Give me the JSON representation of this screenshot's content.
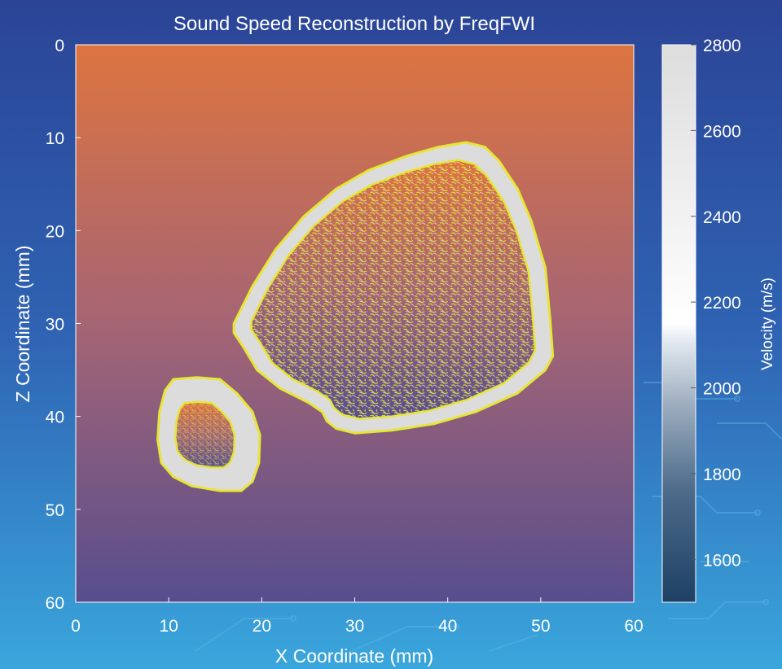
{
  "chart_data": {
    "type": "heatmap",
    "title": "Sound Speed Reconstruction by FreqFWI",
    "xlabel": "X Coordinate (mm)",
    "ylabel": "Z Coordinate (mm)",
    "xlim": [
      0,
      60
    ],
    "ylim": [
      0,
      60
    ],
    "y_inverted": true,
    "xticks": [
      0,
      10,
      20,
      30,
      40,
      50,
      60
    ],
    "yticks": [
      0,
      10,
      20,
      30,
      40,
      50,
      60
    ],
    "colorbar": {
      "label": "Velocity (m/s)",
      "range": [
        1500,
        2800
      ],
      "ticks": [
        1600,
        1800,
        2000,
        2200,
        2400,
        2600,
        2800
      ]
    },
    "background_gradient": {
      "top_color": "#dd7440",
      "bottom_color": "#574e8e"
    },
    "regions": [
      {
        "name": "large bone",
        "shell_color": "#dcdcdc",
        "interior": "trabecular",
        "outline": [
          [
            17,
            30
          ],
          [
            19,
            26
          ],
          [
            21.5,
            22
          ],
          [
            24.5,
            18.5
          ],
          [
            28,
            15.5
          ],
          [
            31.5,
            13.5
          ],
          [
            35.5,
            12
          ],
          [
            39,
            11
          ],
          [
            42,
            10.5
          ],
          [
            44,
            11
          ],
          [
            45.5,
            12.5
          ],
          [
            47.5,
            15.5
          ],
          [
            49,
            19
          ],
          [
            50.5,
            24
          ],
          [
            51,
            29.5
          ],
          [
            51.3,
            33.5
          ],
          [
            50.5,
            35
          ],
          [
            47.5,
            37.5
          ],
          [
            43,
            39.5
          ],
          [
            38.5,
            40.8
          ],
          [
            34,
            41.5
          ],
          [
            30,
            41.8
          ],
          [
            28,
            41.3
          ],
          [
            27,
            40.5
          ],
          [
            26.5,
            39.5
          ],
          [
            25,
            38.5
          ],
          [
            22,
            37
          ],
          [
            19.5,
            35
          ],
          [
            18,
            32.5
          ],
          [
            17,
            31
          ]
        ]
      },
      {
        "name": "small bone",
        "shell_color": "#dcdcdc",
        "interior": "marrow",
        "outline": [
          [
            10.5,
            36
          ],
          [
            13,
            35.8
          ],
          [
            15.5,
            36
          ],
          [
            17.3,
            37.5
          ],
          [
            19,
            39.5
          ],
          [
            19.8,
            42
          ],
          [
            19.7,
            45
          ],
          [
            19,
            47
          ],
          [
            17.8,
            48
          ],
          [
            15.5,
            48
          ],
          [
            12.5,
            47.5
          ],
          [
            10.5,
            46.5
          ],
          [
            9.2,
            45
          ],
          [
            8.8,
            42.5
          ],
          [
            9,
            39.5
          ],
          [
            9.6,
            37.2
          ]
        ]
      }
    ],
    "contour_color": "#e6e635"
  }
}
